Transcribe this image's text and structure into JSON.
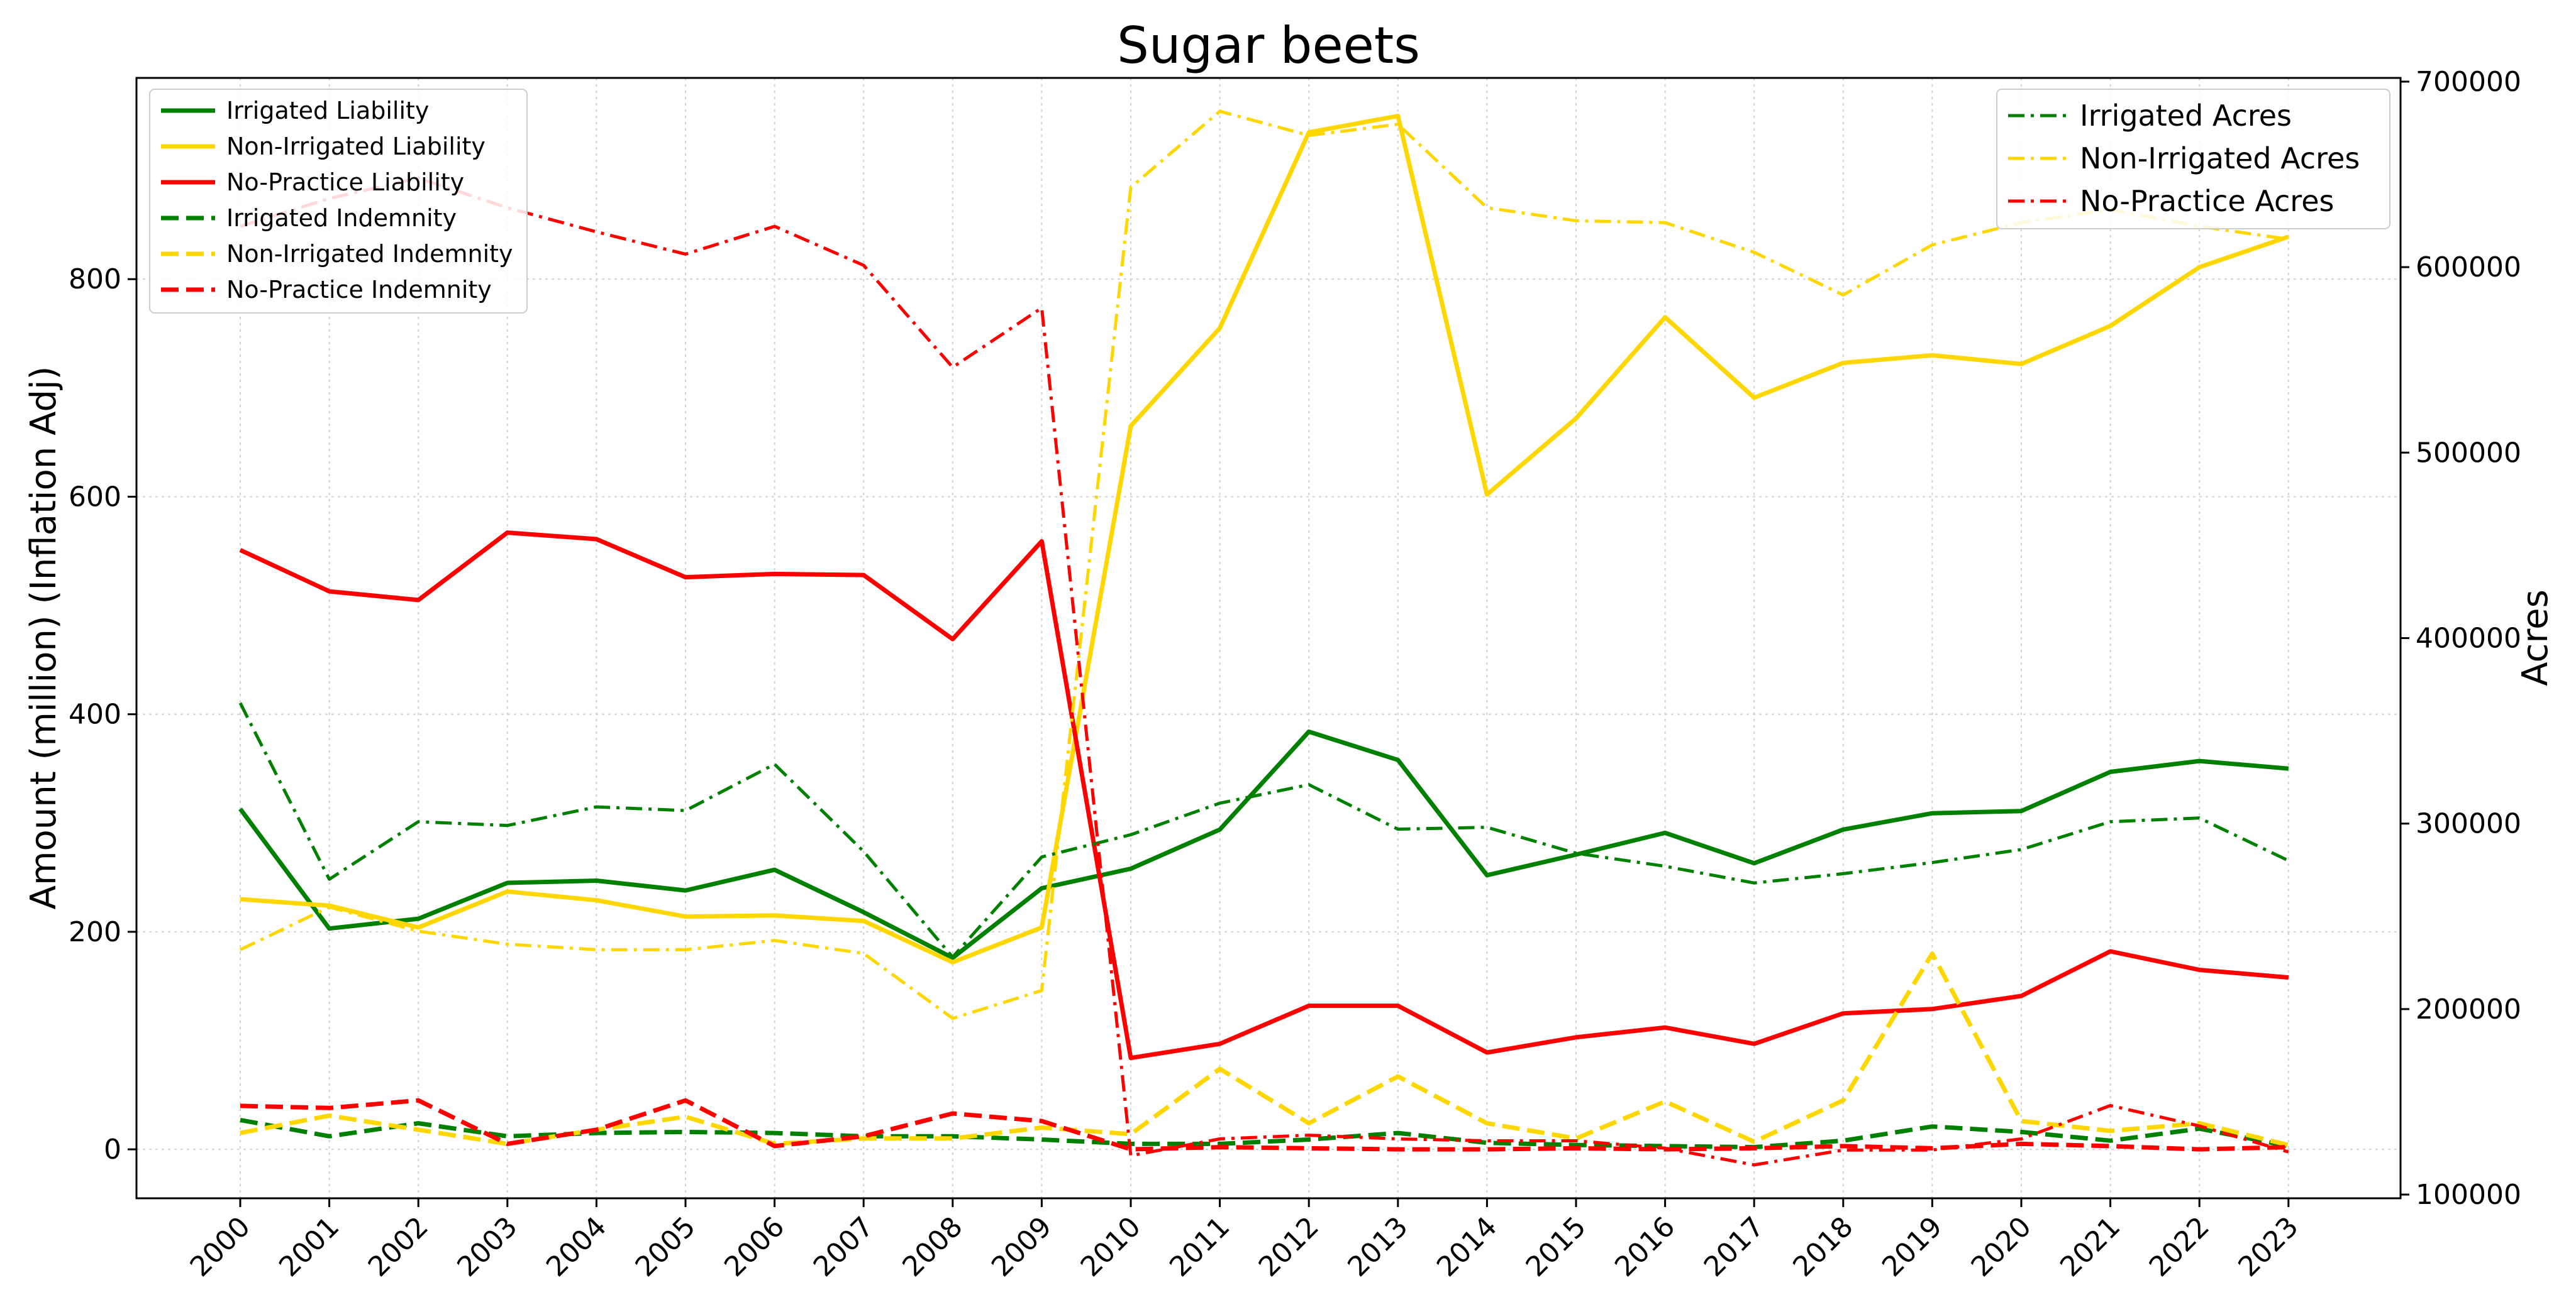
{
  "chart_data": {
    "type": "line",
    "title": "Sugar beets",
    "xlabel": "",
    "ylabel": "Amount (million) (Inflation Adj)",
    "ylabel_right": "Acres",
    "x": [
      "2000",
      "2001",
      "2002",
      "2003",
      "2004",
      "2005",
      "2006",
      "2007",
      "2008",
      "2009",
      "2010",
      "2011",
      "2012",
      "2013",
      "2014",
      "2015",
      "2016",
      "2017",
      "2018",
      "2019",
      "2020",
      "2021",
      "2022",
      "2023"
    ],
    "ylim": [
      -45,
      985
    ],
    "ylim_right": [
      98000,
      702000
    ],
    "yticks": [
      0,
      200,
      400,
      600,
      800
    ],
    "yticks_right": [
      100000,
      200000,
      300000,
      400000,
      500000,
      600000,
      700000
    ],
    "grid": true,
    "legend_left_position": "upper-left",
    "legend_right_position": "upper-right",
    "series": [
      {
        "name": "Irrigated Liability",
        "axis": "left",
        "color": "#008000",
        "style": "solid",
        "values": [
          313,
          203,
          212,
          245,
          247,
          238,
          257,
          218,
          176,
          240,
          258,
          294,
          384,
          358,
          252,
          271,
          291,
          263,
          294,
          309,
          311,
          347,
          357,
          350
        ]
      },
      {
        "name": "Non-Irrigated Liability",
        "axis": "left",
        "color": "#FFD700",
        "style": "solid",
        "values": [
          230,
          224,
          204,
          237,
          229,
          214,
          215,
          210,
          172,
          204,
          665,
          755,
          935,
          950,
          602,
          672,
          765,
          691,
          723,
          730,
          722,
          757,
          811,
          839
        ]
      },
      {
        "name": "No-Practice Liability",
        "axis": "left",
        "color": "#FF0000",
        "style": "solid",
        "values": [
          551,
          513,
          505,
          567,
          561,
          526,
          529,
          528,
          469,
          559,
          84,
          97,
          132,
          132,
          89,
          103,
          112,
          97,
          125,
          129,
          141,
          182,
          165,
          158
        ]
      },
      {
        "name": "Irrigated Indemnity",
        "axis": "left",
        "color": "#008000",
        "style": "dashed",
        "values": [
          27,
          12,
          24,
          12,
          15,
          16,
          15,
          12,
          12,
          9,
          5,
          5,
          9,
          15,
          6,
          4,
          3,
          2,
          8,
          21,
          16,
          8,
          19,
          3
        ]
      },
      {
        "name": "Non-Irrigated Indemnity",
        "axis": "left",
        "color": "#FFD700",
        "style": "dashed",
        "values": [
          15,
          31,
          18,
          5,
          18,
          30,
          5,
          10,
          10,
          20,
          14,
          74,
          24,
          67,
          24,
          10,
          44,
          7,
          45,
          180,
          26,
          17,
          24,
          4
        ]
      },
      {
        "name": "No-Practice Indemnity",
        "axis": "left",
        "color": "#FF0000",
        "style": "dashed",
        "values": [
          40,
          38,
          45,
          5,
          18,
          45,
          3,
          12,
          33,
          26,
          0,
          2,
          1,
          0,
          0,
          1,
          0,
          1,
          3,
          1,
          5,
          3,
          0,
          2
        ]
      },
      {
        "name": "Irrigated Acres",
        "axis": "right",
        "color": "#008000",
        "style": "dashdot",
        "values": [
          365000,
          270000,
          301000,
          299000,
          309000,
          307000,
          332000,
          285000,
          228000,
          282000,
          294000,
          311000,
          321000,
          297000,
          298000,
          284000,
          277000,
          268000,
          273000,
          279000,
          286000,
          301000,
          303000,
          280000
        ]
      },
      {
        "name": "Non-Irrigated Acres",
        "axis": "right",
        "color": "#FFD700",
        "style": "dashdot",
        "values": [
          232000,
          255000,
          242000,
          235000,
          232000,
          232000,
          237000,
          230000,
          195000,
          210000,
          643000,
          684000,
          671000,
          677000,
          632000,
          625000,
          624000,
          608000,
          585000,
          612000,
          624000,
          631000,
          622000,
          615000
        ]
      },
      {
        "name": "No-Practice Acres",
        "axis": "right",
        "color": "#FF0000",
        "style": "dashdot",
        "values": [
          622000,
          637000,
          648000,
          632000,
          619000,
          607000,
          622000,
          601000,
          546000,
          578000,
          121000,
          130000,
          132000,
          130000,
          129000,
          129000,
          125000,
          116000,
          124000,
          124000,
          130000,
          148000,
          137000,
          123000
        ]
      }
    ]
  }
}
